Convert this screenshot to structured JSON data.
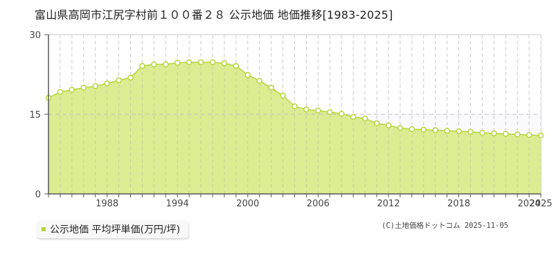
{
  "title": "富山県高岡市江尻字村前１００番２８ 公示地価 地価推移[1983-2025]",
  "legend": {
    "label": "公示地価 平均坪単価(万円/坪)",
    "color": "#b5d63b"
  },
  "copyright": "(C)土地価格ドットコム 2025-11-05",
  "colors": {
    "fill": "#dbec92",
    "line": "#b5d63b",
    "band": "#faf9fb",
    "grid": "#c8c8c8",
    "axis": "#555555"
  },
  "chart_data": {
    "type": "area",
    "title": "富山県高岡市江尻字村前１００番２８ 公示地価 地価推移[1983-2025]",
    "xlabel": "",
    "ylabel": "公示地価 平均坪単価(万円/坪)",
    "ylim": [
      0,
      30
    ],
    "yticks": [
      0,
      15,
      30
    ],
    "xticks": [
      1988,
      1994,
      2000,
      2006,
      2012,
      2018,
      2024,
      2025
    ],
    "grid": true,
    "legend_position": "bottom-left",
    "series": [
      {
        "name": "公示地価 平均坪単価(万円/坪)",
        "x": [
          1983,
          1984,
          1985,
          1986,
          1987,
          1988,
          1989,
          1990,
          1991,
          1992,
          1993,
          1994,
          1995,
          1996,
          1997,
          1998,
          1999,
          2000,
          2001,
          2002,
          2003,
          2004,
          2005,
          2006,
          2007,
          2008,
          2009,
          2010,
          2011,
          2012,
          2013,
          2014,
          2015,
          2016,
          2017,
          2018,
          2019,
          2020,
          2021,
          2022,
          2023,
          2024,
          2025
        ],
        "values": [
          18.1,
          19.2,
          19.6,
          20.0,
          20.3,
          20.8,
          21.4,
          21.9,
          24.1,
          24.4,
          24.4,
          24.7,
          24.8,
          24.8,
          24.8,
          24.6,
          24.1,
          22.4,
          21.3,
          20.0,
          18.5,
          16.5,
          15.9,
          15.7,
          15.4,
          15.1,
          14.5,
          14.2,
          13.3,
          12.9,
          12.4,
          12.2,
          12.1,
          12.0,
          11.9,
          11.8,
          11.7,
          11.5,
          11.4,
          11.3,
          11.2,
          11.1,
          11.0
        ]
      }
    ]
  }
}
